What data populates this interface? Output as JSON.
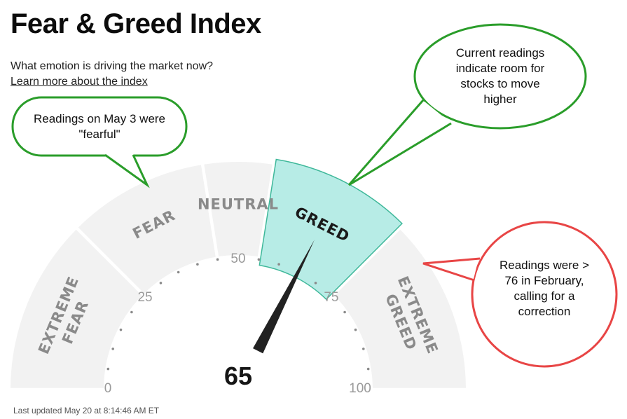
{
  "header": {
    "title": "Fear & Greed Index",
    "subtitle": "What emotion is driving the market now?",
    "learn_more": "Learn more about the index"
  },
  "gauge": {
    "score": 65,
    "score_label": "65",
    "scale_min": 0,
    "scale_max": 100,
    "ticks": [
      "0",
      "25",
      "50",
      "75",
      "100"
    ],
    "segments": [
      {
        "lines": [
          "EXTREME",
          "FEAR"
        ],
        "range": [
          0,
          25
        ]
      },
      {
        "lines": [
          "FEAR"
        ],
        "range": [
          25,
          45
        ]
      },
      {
        "lines": [
          "NEUTRAL"
        ],
        "range": [
          45,
          55
        ]
      },
      {
        "lines": [
          "GREED"
        ],
        "range": [
          55,
          75
        ]
      },
      {
        "lines": [
          "EXTREME",
          "GREED"
        ],
        "range": [
          75,
          100
        ]
      }
    ],
    "active_segment": 3,
    "colors": {
      "segment": "#f2f2f2",
      "active": "#b7ece6",
      "active_border": "#3fb89a",
      "needle": "#222222"
    }
  },
  "callouts": [
    {
      "text": "Readings on May 3 were \"fearful\"",
      "color": "#2a9d2a"
    },
    {
      "text": "Current readings indicate room for stocks to move higher",
      "color": "#2a9d2a"
    },
    {
      "text": "Readings were > 76 in February, calling for a correction",
      "color": "#e84545"
    }
  ],
  "footer": {
    "last_updated": "Last updated May 20 at 8:14:46 AM ET"
  }
}
